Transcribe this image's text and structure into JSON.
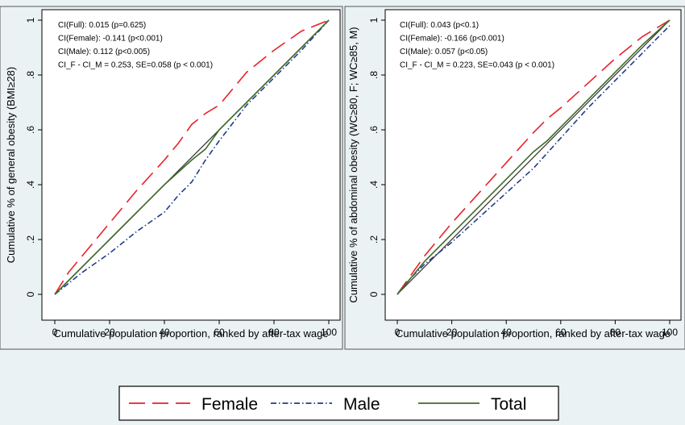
{
  "chart_data": [
    {
      "type": "line",
      "ylabel": "Cumulative % of general obesity (BMI≥28)",
      "xlabel": "Cumulative population proportion, ranked by after-tax wage",
      "xlim": [
        0,
        100
      ],
      "ylim": [
        0,
        1
      ],
      "xticks": [
        "0",
        "20",
        "40",
        "60",
        "80",
        "100"
      ],
      "yticks": [
        "0",
        ".2",
        ".4",
        ".6",
        ".8",
        "1"
      ],
      "grid": false,
      "annotations": [
        "CI(Full): 0.015 (p=0.625)",
        "CI(Female): -0.141 (p<0.001)",
        "CI(Male): 0.112 (p<0.005)",
        "CI_F - CI_M = 0.253, SE=0.058 (p < 0.001)"
      ],
      "series": [
        {
          "key": "female",
          "x": [
            0,
            5,
            10,
            20,
            30,
            40,
            45,
            50,
            55,
            60,
            70,
            80,
            90,
            100
          ],
          "y": [
            0,
            0.08,
            0.14,
            0.26,
            0.38,
            0.49,
            0.55,
            0.62,
            0.66,
            0.69,
            0.81,
            0.89,
            0.96,
            1.0
          ]
        },
        {
          "key": "male",
          "x": [
            0,
            5,
            10,
            20,
            30,
            40,
            45,
            50,
            55,
            60,
            70,
            80,
            90,
            100
          ],
          "y": [
            0,
            0.04,
            0.08,
            0.15,
            0.23,
            0.3,
            0.36,
            0.41,
            0.49,
            0.56,
            0.69,
            0.79,
            0.89,
            1.0
          ]
        },
        {
          "key": "total",
          "x": [
            0,
            5,
            10,
            20,
            30,
            40,
            50,
            55,
            60,
            70,
            80,
            90,
            100
          ],
          "y": [
            0,
            0.05,
            0.1,
            0.2,
            0.3,
            0.4,
            0.49,
            0.53,
            0.6,
            0.7,
            0.8,
            0.9,
            1.0
          ]
        }
      ]
    },
    {
      "type": "line",
      "ylabel": "Cumulative % of abdominal obesity (WC≥80, F; WC≥85, M)",
      "xlabel": "Cumulative population proportion, ranked by after-tax wage",
      "xlim": [
        0,
        100
      ],
      "ylim": [
        0,
        1
      ],
      "xticks": [
        "0",
        "20",
        "40",
        "60",
        "80",
        "100"
      ],
      "yticks": [
        "0",
        ".2",
        ".4",
        ".6",
        ".8",
        "1"
      ],
      "grid": false,
      "annotations": [
        "CI(Full): 0.043 (p<0.1)",
        "CI(Female): -0.166 (p<0.001)",
        "CI(Male): 0.057 (p<0.05)",
        "CI_F - CI_M = 0.223, SE=0.043 (p < 0.001)"
      ],
      "series": [
        {
          "key": "female",
          "x": [
            0,
            5,
            10,
            20,
            30,
            40,
            50,
            55,
            60,
            70,
            80,
            90,
            100
          ],
          "y": [
            0,
            0.07,
            0.14,
            0.26,
            0.37,
            0.48,
            0.59,
            0.64,
            0.68,
            0.77,
            0.86,
            0.94,
            1.0
          ]
        },
        {
          "key": "male",
          "x": [
            0,
            5,
            10,
            20,
            30,
            40,
            50,
            60,
            70,
            80,
            90,
            100
          ],
          "y": [
            0,
            0.06,
            0.11,
            0.19,
            0.28,
            0.37,
            0.46,
            0.57,
            0.68,
            0.78,
            0.88,
            0.98
          ]
        },
        {
          "key": "total",
          "x": [
            0,
            5,
            10,
            20,
            30,
            40,
            50,
            55,
            60,
            70,
            80,
            90,
            100
          ],
          "y": [
            0,
            0.06,
            0.12,
            0.22,
            0.32,
            0.42,
            0.52,
            0.56,
            0.61,
            0.71,
            0.81,
            0.91,
            1.0
          ]
        }
      ]
    }
  ],
  "legend": {
    "placement": "bottom",
    "entries": [
      {
        "key": "female",
        "label": "Female",
        "color": "#e8212a",
        "dash": "long-dash"
      },
      {
        "key": "male",
        "label": "Male",
        "color": "#1f3d8a",
        "dash": "dash-dot"
      },
      {
        "key": "total",
        "label": "Total",
        "color": "#3e6b28",
        "dash": "solid"
      }
    ]
  },
  "colors": {
    "background": "#eaf2f3",
    "plot_background": "#ffffff",
    "equality_line": "#333333"
  }
}
